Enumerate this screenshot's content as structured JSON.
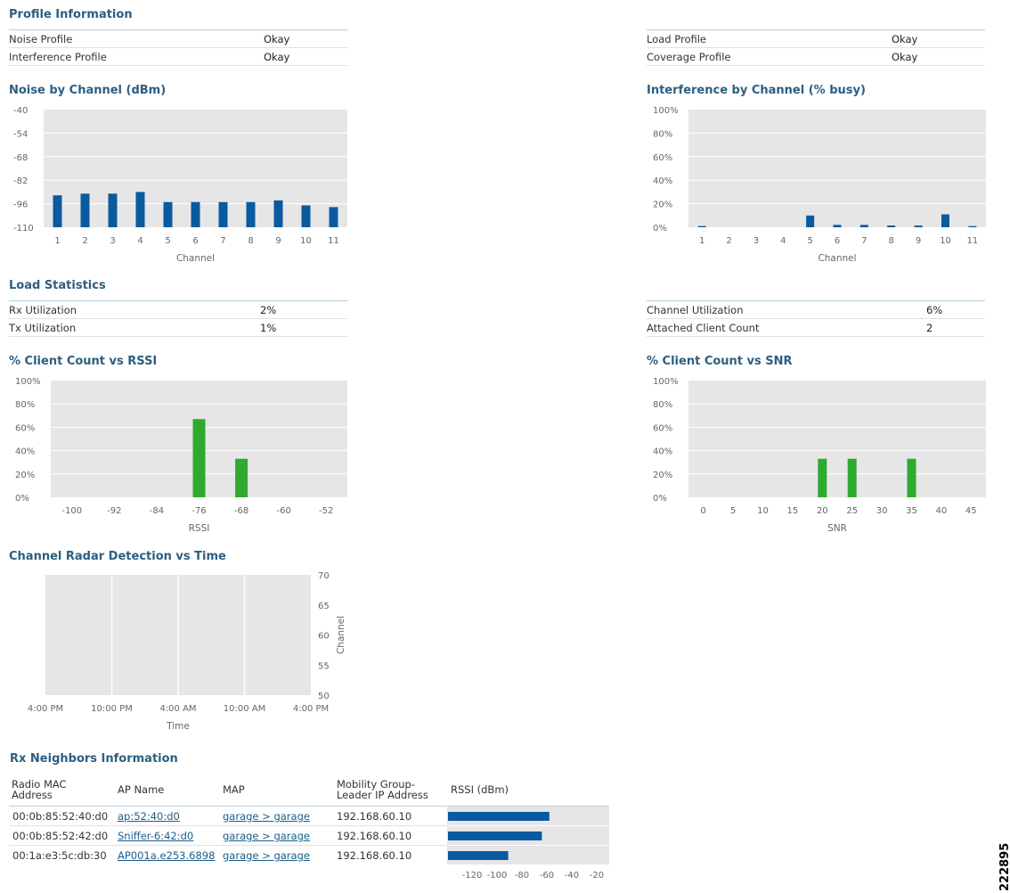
{
  "profile": {
    "title": "Profile Information",
    "left": [
      {
        "label": "Noise Profile",
        "value": "Okay"
      },
      {
        "label": "Interference Profile",
        "value": "Okay"
      }
    ],
    "right": [
      {
        "label": "Load Profile",
        "value": "Okay"
      },
      {
        "label": "Coverage Profile",
        "value": "Okay"
      }
    ]
  },
  "load": {
    "title": "Load Statistics",
    "left": [
      {
        "label": "Rx Utilization",
        "value": "2%"
      },
      {
        "label": "Tx Utilization",
        "value": "1%"
      }
    ],
    "right": [
      {
        "label": "Channel Utilization",
        "value": "6%"
      },
      {
        "label": "Attached Client Count",
        "value": "2"
      }
    ]
  },
  "colors": {
    "title": "#2d5e80",
    "blue_bar": "#0a5aa0",
    "green_bar": "#2eaa2e",
    "plot_bg": "#e6e6e6"
  },
  "chart_data": [
    {
      "id": "noise",
      "type": "bar",
      "title": "Noise by Channel (dBm)",
      "xlabel": "Channel",
      "ylabel": "",
      "categories": [
        "1",
        "2",
        "3",
        "4",
        "5",
        "6",
        "7",
        "8",
        "9",
        "10",
        "11"
      ],
      "values": [
        -91,
        -90,
        -90,
        -89,
        -95,
        -95,
        -95,
        -95,
        -94,
        -97,
        -98
      ],
      "ylim": [
        -110,
        -40
      ],
      "yticks": [
        "-110",
        "-96",
        "-82",
        "-68",
        "-54",
        "-40"
      ],
      "grid": true
    },
    {
      "id": "interference",
      "type": "bar",
      "title": "Interference by Channel (% busy)",
      "xlabel": "Channel",
      "ylabel": "",
      "categories": [
        "1",
        "2",
        "3",
        "4",
        "5",
        "6",
        "7",
        "8",
        "9",
        "10",
        "11"
      ],
      "values": [
        1,
        0,
        0,
        0,
        10,
        2,
        2,
        1.5,
        1.5,
        11,
        1
      ],
      "ylim": [
        0,
        100
      ],
      "yticks": [
        "0%",
        "20%",
        "40%",
        "60%",
        "80%",
        "100%"
      ],
      "grid": true
    },
    {
      "id": "rssi",
      "type": "bar",
      "title": "% Client Count vs RSSI",
      "xlabel": "RSSI",
      "ylabel": "",
      "categories": [
        "-100",
        "-92",
        "-84",
        "-76",
        "-68",
        "-60",
        "-52"
      ],
      "values": [
        0,
        0,
        0,
        67,
        33,
        0,
        0
      ],
      "ylim": [
        0,
        100
      ],
      "yticks": [
        "0%",
        "20%",
        "40%",
        "60%",
        "80%",
        "100%"
      ],
      "grid": true
    },
    {
      "id": "snr",
      "type": "bar",
      "title": "% Client Count vs SNR",
      "xlabel": "SNR",
      "ylabel": "",
      "categories": [
        "0",
        "5",
        "10",
        "15",
        "20",
        "25",
        "30",
        "35",
        "40",
        "45"
      ],
      "values": [
        0,
        0,
        0,
        0,
        33,
        33,
        0,
        33,
        0,
        0
      ],
      "ylim": [
        0,
        100
      ],
      "yticks": [
        "0%",
        "20%",
        "40%",
        "60%",
        "80%",
        "100%"
      ],
      "grid": true
    },
    {
      "id": "radar",
      "type": "scatter",
      "title": "Channel Radar Detection vs Time",
      "xlabel": "Time",
      "ylabel": "Channel",
      "x_ticks": [
        "4:00 PM",
        "10:00 PM",
        "4:00 AM",
        "10:00 AM",
        "4:00 PM"
      ],
      "yticks": [
        "50",
        "55",
        "60",
        "65",
        "70"
      ],
      "ylim": [
        50,
        70
      ],
      "points": [],
      "grid": true
    },
    {
      "id": "neighbors_rssi",
      "type": "bar",
      "title": "",
      "xlabel": "",
      "ylabel": "",
      "categories": [
        "00:0b:85:52:40:d0",
        "00:0b:85:52:42:d0",
        "00:1a:e3:5c:db:30"
      ],
      "values": [
        -58,
        -64,
        -91
      ],
      "xlim": [
        -140,
        -10
      ],
      "xticks": [
        "-120",
        "-100",
        "-80",
        "-60",
        "-40",
        "-20"
      ],
      "orientation": "horizontal"
    }
  ],
  "neighbors": {
    "title": "Rx Neighbors Information",
    "headers": {
      "mac": "Radio MAC\nAddress",
      "ap": "AP Name",
      "map": "MAP",
      "ip": "Mobility Group-\nLeader IP Address",
      "rssi": "RSSI (dBm)"
    },
    "rows": [
      {
        "mac": "00:0b:85:52:40:d0",
        "ap": "ap:52:40:d0",
        "map": "garage > garage",
        "ip": "192.168.60.10"
      },
      {
        "mac": "00:0b:85:52:42:d0",
        "ap": "Sniffer-6:42:d0",
        "map": "garage > garage",
        "ip": "192.168.60.10"
      },
      {
        "mac": "00:1a:e3:5c:db:30",
        "ap": "AP001a.e253.6898",
        "map": "garage > garage",
        "ip": "192.168.60.10"
      }
    ]
  },
  "figure_code": "222895"
}
